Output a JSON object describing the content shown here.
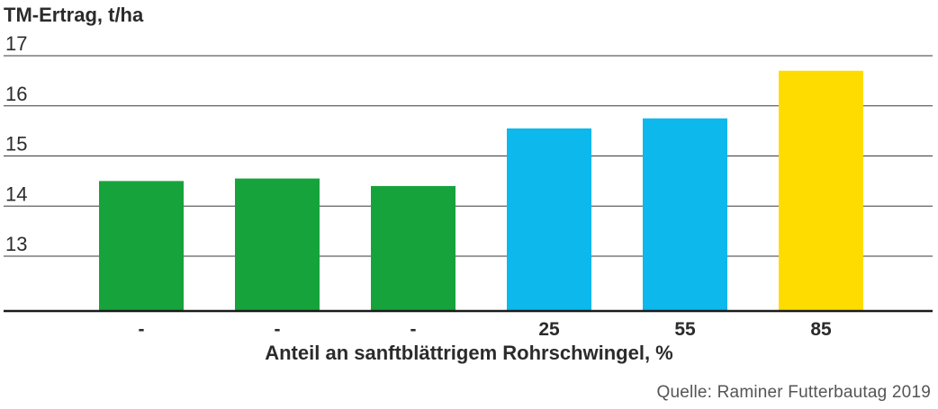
{
  "chart_data": {
    "type": "bar",
    "ylabel": "TM-Ertrag, t/ha",
    "xlabel": "Anteil an sanftblättrigem Rohrschwingel, %",
    "source": "Quelle: Raminer Futterbautag 2019",
    "categories": [
      "-",
      "-",
      "-",
      "25",
      "55",
      "85"
    ],
    "values": [
      14.5,
      14.55,
      14.4,
      15.55,
      15.75,
      16.7
    ],
    "bar_colors": [
      "#17a33b",
      "#17a33b",
      "#17a33b",
      "#0db8ec",
      "#0db8ec",
      "#ffdc00"
    ],
    "yticks": [
      13,
      14,
      15,
      16,
      17
    ],
    "ylim": [
      12.0,
      17.2
    ],
    "grid": true
  }
}
